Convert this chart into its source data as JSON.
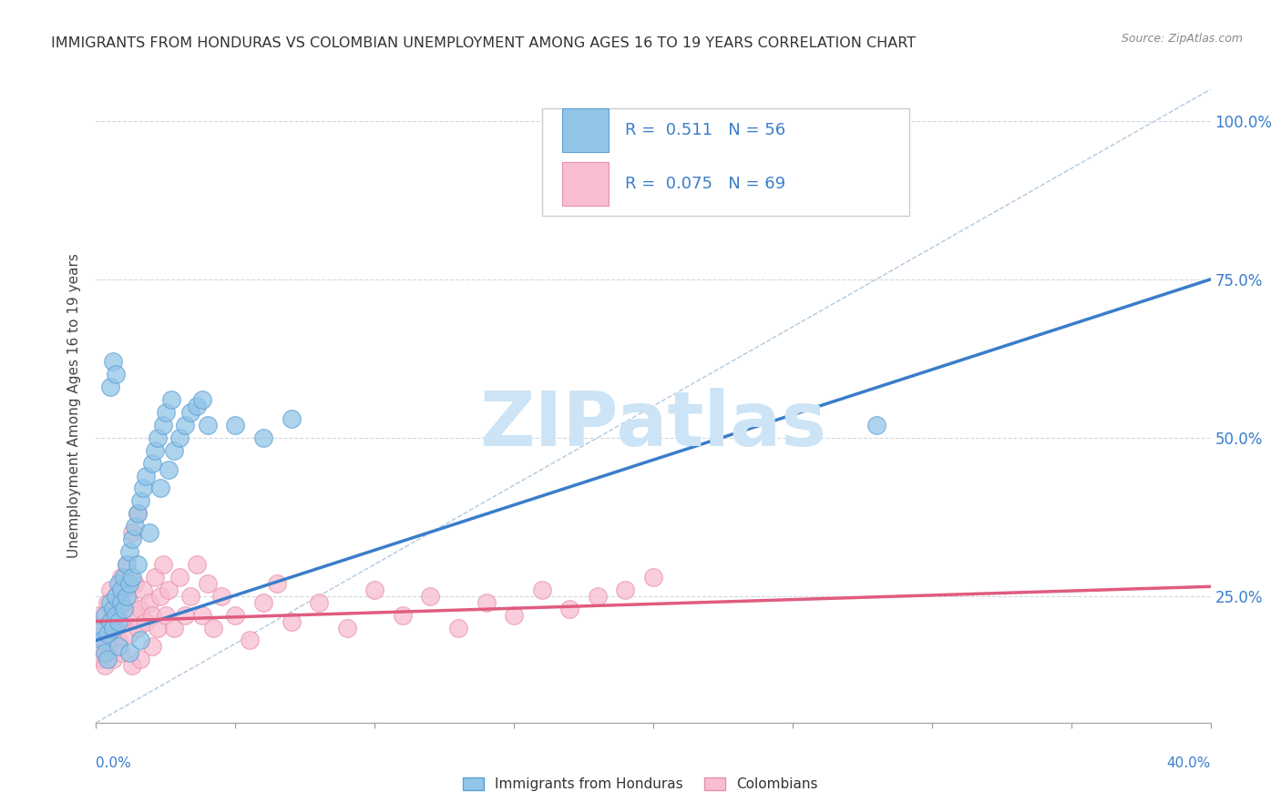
{
  "title": "IMMIGRANTS FROM HONDURAS VS COLOMBIAN UNEMPLOYMENT AMONG AGES 16 TO 19 YEARS CORRELATION CHART",
  "source": "Source: ZipAtlas.com",
  "xlim": [
    0.0,
    0.4
  ],
  "ylim": [
    0.05,
    1.05
  ],
  "R_blue": 0.511,
  "N_blue": 56,
  "R_pink": 0.075,
  "N_pink": 69,
  "blue_color": "#92c5e8",
  "blue_edge_color": "#5b9fd4",
  "blue_line_color": "#3a7dc9",
  "pink_color": "#f8bdd0",
  "pink_edge_color": "#e890ab",
  "pink_line_color": "#e05c80",
  "diag_color": "#b0c8e0",
  "grid_color": "#d0d8e0",
  "ytick_color": "#3a7dc9",
  "background_color": "#ffffff",
  "watermark": "ZIPatlas",
  "watermark_color": "#cce4f5",
  "blue_scatter": [
    [
      0.001,
      0.2
    ],
    [
      0.002,
      0.18
    ],
    [
      0.003,
      0.22
    ],
    [
      0.004,
      0.19
    ],
    [
      0.005,
      0.24
    ],
    [
      0.005,
      0.21
    ],
    [
      0.006,
      0.2
    ],
    [
      0.006,
      0.23
    ],
    [
      0.007,
      0.25
    ],
    [
      0.007,
      0.22
    ],
    [
      0.008,
      0.27
    ],
    [
      0.008,
      0.21
    ],
    [
      0.009,
      0.26
    ],
    [
      0.009,
      0.24
    ],
    [
      0.01,
      0.28
    ],
    [
      0.01,
      0.23
    ],
    [
      0.011,
      0.3
    ],
    [
      0.011,
      0.25
    ],
    [
      0.012,
      0.32
    ],
    [
      0.012,
      0.27
    ],
    [
      0.013,
      0.34
    ],
    [
      0.013,
      0.28
    ],
    [
      0.014,
      0.36
    ],
    [
      0.015,
      0.38
    ],
    [
      0.015,
      0.3
    ],
    [
      0.016,
      0.4
    ],
    [
      0.017,
      0.42
    ],
    [
      0.018,
      0.44
    ],
    [
      0.019,
      0.35
    ],
    [
      0.02,
      0.46
    ],
    [
      0.021,
      0.48
    ],
    [
      0.022,
      0.5
    ],
    [
      0.023,
      0.42
    ],
    [
      0.024,
      0.52
    ],
    [
      0.025,
      0.54
    ],
    [
      0.026,
      0.45
    ],
    [
      0.027,
      0.56
    ],
    [
      0.028,
      0.48
    ],
    [
      0.03,
      0.5
    ],
    [
      0.032,
      0.52
    ],
    [
      0.034,
      0.54
    ],
    [
      0.036,
      0.55
    ],
    [
      0.038,
      0.56
    ],
    [
      0.04,
      0.52
    ],
    [
      0.005,
      0.58
    ],
    [
      0.006,
      0.62
    ],
    [
      0.007,
      0.6
    ],
    [
      0.05,
      0.52
    ],
    [
      0.06,
      0.5
    ],
    [
      0.07,
      0.53
    ],
    [
      0.003,
      0.16
    ],
    [
      0.004,
      0.15
    ],
    [
      0.008,
      0.17
    ],
    [
      0.012,
      0.16
    ],
    [
      0.016,
      0.18
    ],
    [
      0.28,
      0.52
    ]
  ],
  "pink_scatter": [
    [
      0.001,
      0.22
    ],
    [
      0.002,
      0.2
    ],
    [
      0.003,
      0.18
    ],
    [
      0.004,
      0.24
    ],
    [
      0.005,
      0.19
    ],
    [
      0.005,
      0.26
    ],
    [
      0.006,
      0.22
    ],
    [
      0.007,
      0.2
    ],
    [
      0.007,
      0.25
    ],
    [
      0.008,
      0.18
    ],
    [
      0.008,
      0.23
    ],
    [
      0.009,
      0.28
    ],
    [
      0.01,
      0.21
    ],
    [
      0.01,
      0.26
    ],
    [
      0.011,
      0.3
    ],
    [
      0.012,
      0.19
    ],
    [
      0.012,
      0.24
    ],
    [
      0.013,
      0.35
    ],
    [
      0.014,
      0.22
    ],
    [
      0.014,
      0.27
    ],
    [
      0.015,
      0.2
    ],
    [
      0.015,
      0.38
    ],
    [
      0.016,
      0.23
    ],
    [
      0.017,
      0.26
    ],
    [
      0.018,
      0.21
    ],
    [
      0.019,
      0.24
    ],
    [
      0.02,
      0.22
    ],
    [
      0.021,
      0.28
    ],
    [
      0.022,
      0.2
    ],
    [
      0.023,
      0.25
    ],
    [
      0.024,
      0.3
    ],
    [
      0.025,
      0.22
    ],
    [
      0.026,
      0.26
    ],
    [
      0.028,
      0.2
    ],
    [
      0.03,
      0.28
    ],
    [
      0.032,
      0.22
    ],
    [
      0.034,
      0.25
    ],
    [
      0.036,
      0.3
    ],
    [
      0.038,
      0.22
    ],
    [
      0.04,
      0.27
    ],
    [
      0.042,
      0.2
    ],
    [
      0.045,
      0.25
    ],
    [
      0.05,
      0.22
    ],
    [
      0.055,
      0.18
    ],
    [
      0.06,
      0.24
    ],
    [
      0.065,
      0.27
    ],
    [
      0.07,
      0.21
    ],
    [
      0.08,
      0.24
    ],
    [
      0.09,
      0.2
    ],
    [
      0.1,
      0.26
    ],
    [
      0.11,
      0.22
    ],
    [
      0.12,
      0.25
    ],
    [
      0.13,
      0.2
    ],
    [
      0.14,
      0.24
    ],
    [
      0.15,
      0.22
    ],
    [
      0.16,
      0.26
    ],
    [
      0.17,
      0.23
    ],
    [
      0.18,
      0.25
    ],
    [
      0.001,
      0.16
    ],
    [
      0.002,
      0.15
    ],
    [
      0.003,
      0.14
    ],
    [
      0.004,
      0.17
    ],
    [
      0.006,
      0.15
    ],
    [
      0.009,
      0.16
    ],
    [
      0.013,
      0.14
    ],
    [
      0.016,
      0.15
    ],
    [
      0.02,
      0.17
    ],
    [
      0.19,
      0.26
    ],
    [
      0.2,
      0.28
    ]
  ],
  "blue_reg": [
    0.0,
    0.4,
    0.18,
    0.75
  ],
  "pink_reg": [
    0.0,
    0.4,
    0.21,
    0.265
  ]
}
